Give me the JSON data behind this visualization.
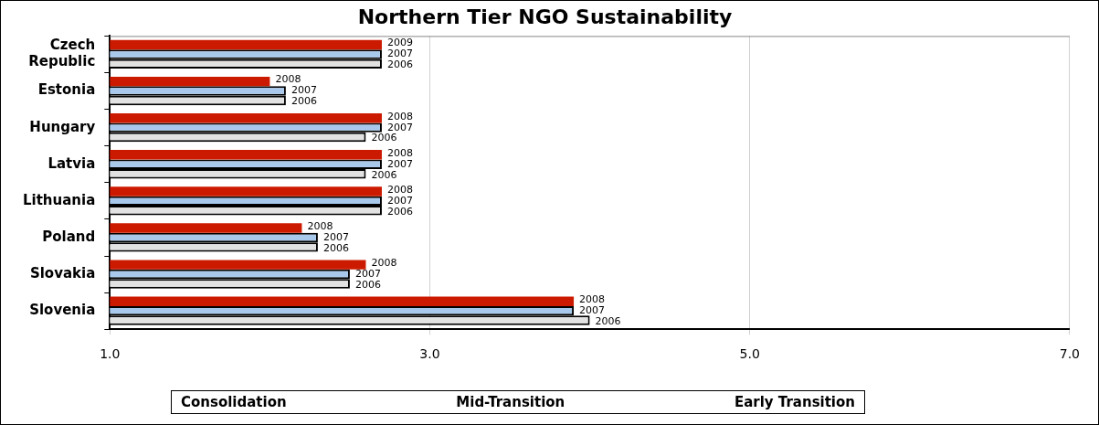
{
  "chart_data": {
    "type": "bar",
    "orientation": "horizontal",
    "title": "Northern Tier NGO Sustainability",
    "categories": [
      "Czech Republic",
      "Estonia",
      "Hungary",
      "Latvia",
      "Lithuania",
      "Poland",
      "Slovakia",
      "Slovenia"
    ],
    "series": [
      {
        "name": "2008",
        "color": "#cc1a00",
        "values": [
          2.7,
          2.0,
          2.7,
          2.7,
          2.7,
          2.2,
          2.6,
          3.9
        ]
      },
      {
        "name": "2007",
        "color": "#a9c9ec",
        "values": [
          2.7,
          2.1,
          2.7,
          2.7,
          2.7,
          2.3,
          2.5,
          3.9
        ]
      },
      {
        "name": "2006",
        "color": "#e2e2e2",
        "values": [
          2.7,
          2.1,
          2.6,
          2.6,
          2.7,
          2.3,
          2.5,
          4.0
        ]
      }
    ],
    "xlim": [
      1,
      7
    ],
    "xticks": [
      {
        "value": 1,
        "label": "1.0"
      },
      {
        "value": 3,
        "label": "3.0"
      },
      {
        "value": 5,
        "label": "5.0"
      },
      {
        "value": 7,
        "label": "7.0"
      }
    ],
    "grid": "x",
    "legend": false,
    "annotations": [
      "Consolidation",
      "Mid-Transition",
      "Early Transition",
      {
        "text": "2009",
        "x": 2.7,
        "y": "Czech Republic"
      }
    ]
  }
}
